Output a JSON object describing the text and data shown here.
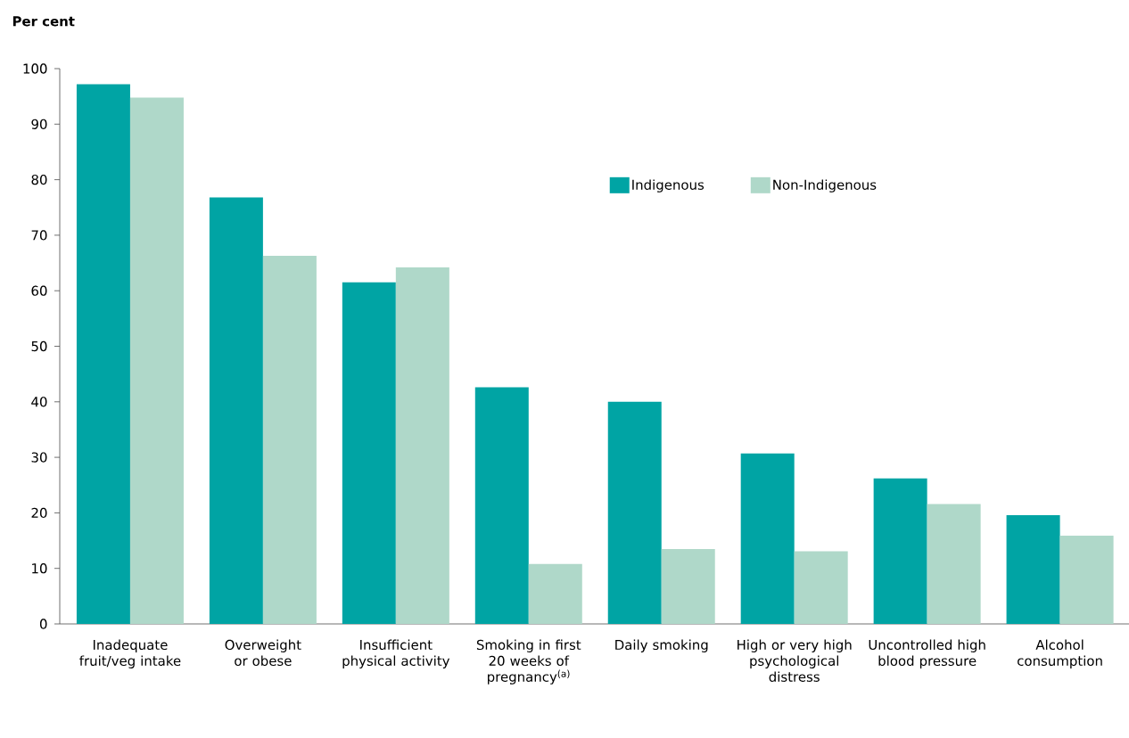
{
  "chart_data": {
    "type": "bar",
    "ylabel": "Per cent",
    "categories": [
      "Inadequate fruit/veg intake",
      "Overweight or obese",
      "Insufficient physical activity",
      "Smoking in first 20 weeks of pregnancy$^{(a)}$",
      "Daily smoking",
      "High or very high psychological distress",
      "Uncontrolled high blood pressure",
      "Alcohol consumption"
    ],
    "series": [
      {
        "name": "Indigenous",
        "color": "#00a4a4",
        "values": [
          97.2,
          76.8,
          61.5,
          42.6,
          40.0,
          30.7,
          26.2,
          19.6
        ]
      },
      {
        "name": "Non-Indigenous",
        "color": "#afd8c9",
        "values": [
          94.8,
          66.3,
          64.2,
          10.8,
          13.5,
          13.1,
          21.6,
          15.9
        ]
      }
    ],
    "ylim": [
      0,
      100
    ],
    "yticks": [
      0,
      10,
      20,
      30,
      40,
      50,
      60,
      70,
      80,
      90,
      100
    ],
    "grid": false,
    "legend": "top right"
  }
}
